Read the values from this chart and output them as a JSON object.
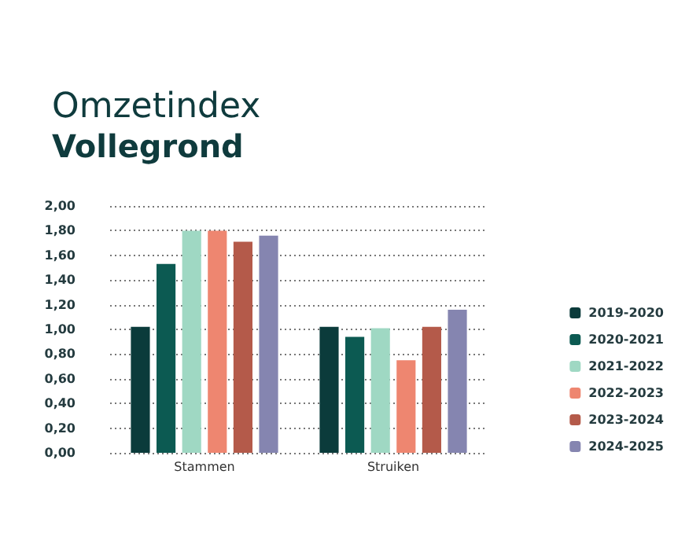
{
  "chart_data": {
    "type": "bar",
    "title": "Omzetindex",
    "subtitle": "Vollegrond",
    "categories": [
      "Stammen",
      "Struiken"
    ],
    "series": [
      {
        "name": "2019-2020",
        "color": "#0b3b3b",
        "values": [
          1.02,
          1.02
        ]
      },
      {
        "name": "2020-2021",
        "color": "#0c5a52",
        "values": [
          1.53,
          0.94
        ]
      },
      {
        "name": "2021-2022",
        "color": "#9fd8c3",
        "values": [
          1.8,
          1.01
        ]
      },
      {
        "name": "2022-2023",
        "color": "#ee8670",
        "values": [
          1.8,
          0.75
        ]
      },
      {
        "name": "2023-2024",
        "color": "#b45a4a",
        "values": [
          1.71,
          1.02
        ]
      },
      {
        "name": "2024-2025",
        "color": "#8585b0",
        "values": [
          1.76,
          1.16
        ]
      }
    ],
    "ylim": [
      0,
      2
    ],
    "yticks": [
      {
        "value": 0,
        "label": "0,00"
      },
      {
        "value": 0.2,
        "label": "0,20"
      },
      {
        "value": 0.4,
        "label": "0,40"
      },
      {
        "value": 0.6,
        "label": "0,60"
      },
      {
        "value": 0.8,
        "label": "0,80"
      },
      {
        "value": 1,
        "label": "1,00"
      },
      {
        "value": 1.2,
        "label": "1,20"
      },
      {
        "value": 1.4,
        "label": "1,40"
      },
      {
        "value": 1.6,
        "label": "1,60"
      },
      {
        "value": 1.8,
        "label": "1,80"
      },
      {
        "value": 2,
        "label": "2,00"
      }
    ],
    "grid": "y",
    "legend": "right"
  }
}
